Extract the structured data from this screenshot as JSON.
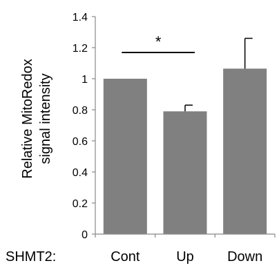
{
  "chart_data": {
    "type": "bar",
    "title": "",
    "ylabel_lines": [
      "Relative MitoRedox",
      "signal intensity"
    ],
    "x_group_label": "SHMT2:",
    "categories": [
      "Cont",
      "Up",
      "Down"
    ],
    "values": [
      1.0,
      0.79,
      1.065
    ],
    "error_upper": [
      0.0,
      0.04,
      0.195
    ],
    "ylim": [
      0,
      1.4
    ],
    "yticks": [
      "0",
      "0.2",
      "0.4",
      "0.6",
      "0.8",
      "1",
      "1.2",
      "1.4"
    ],
    "bar_color": "#808080",
    "significance": {
      "between": [
        "Cont",
        "Up"
      ],
      "label": "*"
    },
    "grid": false,
    "legend": "none"
  }
}
